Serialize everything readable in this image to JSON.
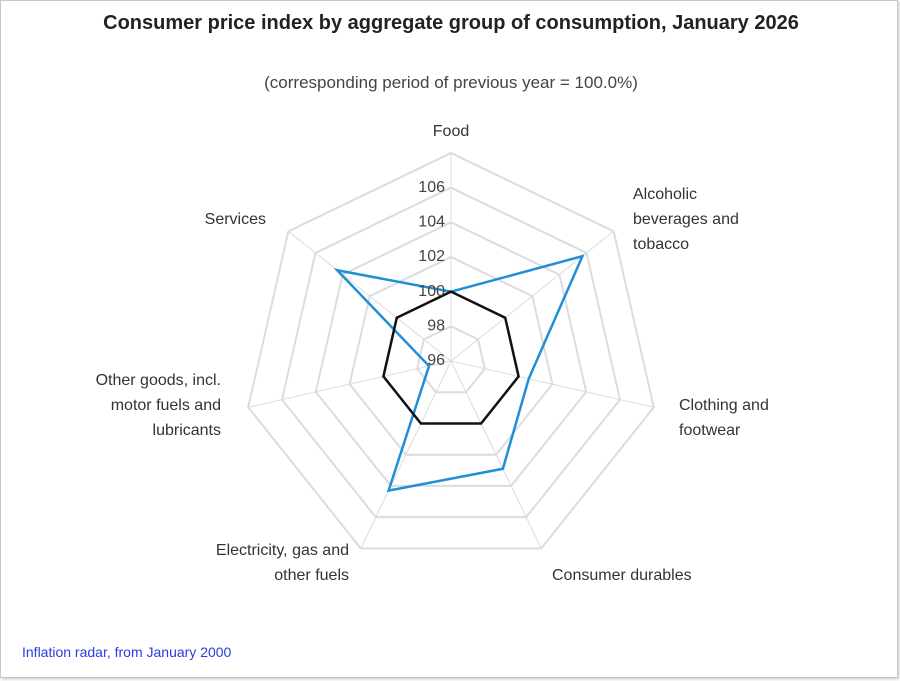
{
  "chart_data": {
    "type": "radar",
    "title": "Consumer price index by aggregate group of consumption, January 2026",
    "subtitle": "(corresponding period of previous year = 100.0%)",
    "categories": [
      "Food",
      "Alcoholic beverages and tobacco",
      "Clothing and footwear",
      "Consumer durables",
      "Electricity, gas and other fuels",
      "Other goods, incl. motor fuels and lubricants",
      "Services"
    ],
    "series": [
      {
        "color": "#1f8fd6",
        "values": [
          100.0,
          105.7,
          100.6,
          102.9,
          104.3,
          97.3,
          104.4
        ]
      },
      {
        "color": "#111111",
        "values": [
          100,
          100,
          100,
          100,
          100,
          100,
          100
        ]
      }
    ],
    "ylim": [
      96,
      108
    ],
    "yticks": [
      96,
      98,
      100,
      102,
      104,
      106
    ],
    "grid": true
  },
  "footer": {
    "link": "Inflation radar, from January 2000"
  }
}
